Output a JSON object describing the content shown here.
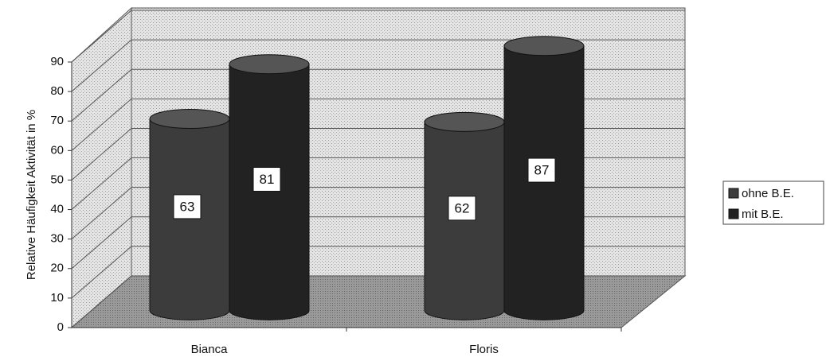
{
  "chart_data": {
    "type": "bar",
    "y_label": "Relative Häufigkeit Aktivität in %",
    "categories": [
      "Bianca",
      "Floris"
    ],
    "series": [
      {
        "name": "ohne B.E.",
        "color": "#3c3c3c",
        "values": [
          63,
          62
        ]
      },
      {
        "name": "mit B.E.",
        "color": "#222222",
        "values": [
          81,
          87
        ]
      }
    ],
    "ylim": [
      0,
      90
    ],
    "yticks": [
      0,
      10,
      20,
      30,
      40,
      50,
      60,
      70,
      80,
      90
    ],
    "grid": true,
    "legend": "right"
  }
}
